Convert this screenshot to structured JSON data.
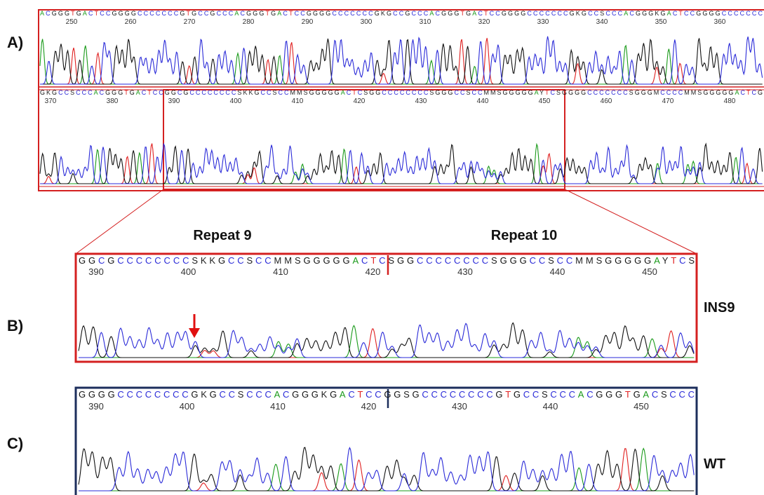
{
  "panel_a": {
    "label": "A)",
    "rows": [
      {
        "sequence": "ACGGGTGACTCCGGGGCCCCCCCGTGCCGCCCACGGGTGACTCCGGGGCCCCCCCGKGCCGCCCACGGGTGACTCCGGGGCCCCCCCGKGCCSCCCACGGGKGACTCCGGGGCCCCCCC",
        "positions": [
          250,
          260,
          270,
          280,
          290,
          300,
          310,
          320,
          330,
          340,
          350,
          360
        ]
      },
      {
        "sequence": "GKGCCSCCCACGGGTGACTCCGGCGCCCCCCCCSKKGCCSCCMMSGGGGGACTCSGGCCCCCCCCSGGGCCSCCMMSGGGGGAYTCSGGGGCCCCCCCSGGGMCCCCMMSGGGGGACTCG",
        "positions": [
          370,
          380,
          390,
          400,
          410,
          420,
          430,
          440,
          450,
          460,
          470,
          480
        ]
      }
    ]
  },
  "panel_b": {
    "label": "B)",
    "repeat_labels": [
      "Repeat 9",
      "Repeat 10"
    ],
    "sequence": "GGCGCCCCCCCCSKKGCCSCCMMSGGGGGACTCSGGCCCCCCCCSGGGCCSCCMMSGGGGGAYTCS",
    "positions": [
      390,
      400,
      410,
      420,
      430,
      440,
      450
    ],
    "sample": "INS9"
  },
  "panel_c": {
    "label": "C)",
    "sequence": "GGGGCCCCCCCCGKGCCSCCCACGGGKGACTCCGGSGCCCCCCCCGTGCCSCCCACGGGTGACSCCC",
    "positions": [
      390,
      400,
      410,
      420,
      430,
      440,
      450
    ],
    "sample": "WT"
  }
}
